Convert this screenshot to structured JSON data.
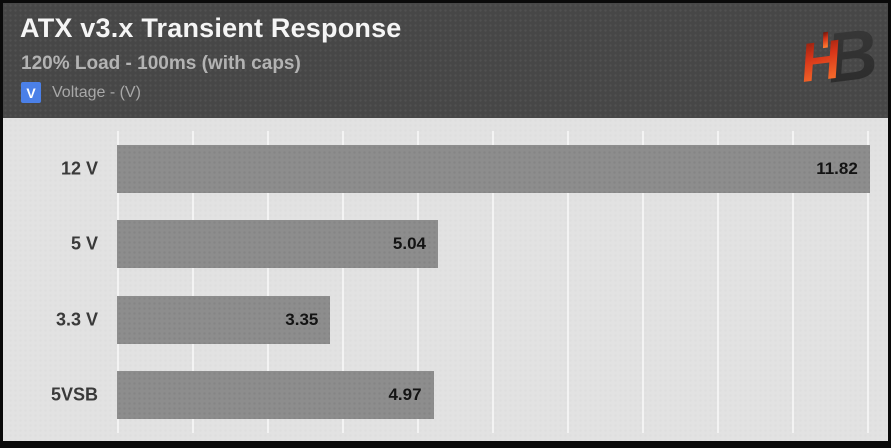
{
  "header": {
    "title": "ATX v3.x Transient Response",
    "subtitle": "120% Load - 100ms (with caps)",
    "legend": {
      "symbol": "V",
      "label": "Voltage - (V)"
    },
    "logo": "hardware-busters-hb-logo"
  },
  "colors": {
    "frame_border": "#0a0a0a",
    "header_bg": "#474747",
    "title_text": "#f5f5f5",
    "subtitle_text": "#b3b3b3",
    "legend_chip_bg": "#4b80e8",
    "legend_text": "#a8a8a8",
    "chart_bg": "#e2e2e2",
    "gridline": "#f3f3f3",
    "bar_fill": "#8d8d8d",
    "category_text": "#3a3a3a",
    "value_text": "#141414",
    "logo_red_top": "#6b150b",
    "logo_red_bottom": "#ff7a30",
    "logo_b_fill": "#313131"
  },
  "chart_data": {
    "type": "bar",
    "orientation": "horizontal",
    "title": "ATX v3.x Transient Response",
    "subtitle": "120% Load - 100ms (with caps)",
    "series_label": "Voltage - (V)",
    "categories": [
      "12 V",
      "5 V",
      "3.3 V",
      "5VSB"
    ],
    "values": [
      11.82,
      5.04,
      3.35,
      4.97
    ],
    "value_labels": [
      "11.82",
      "5.04",
      "3.35",
      "4.97"
    ],
    "xlim": [
      0,
      11.87
    ],
    "grid": true,
    "grid_divisions": 10,
    "value_label_position": "inside-end",
    "legend_position": "top-left"
  }
}
